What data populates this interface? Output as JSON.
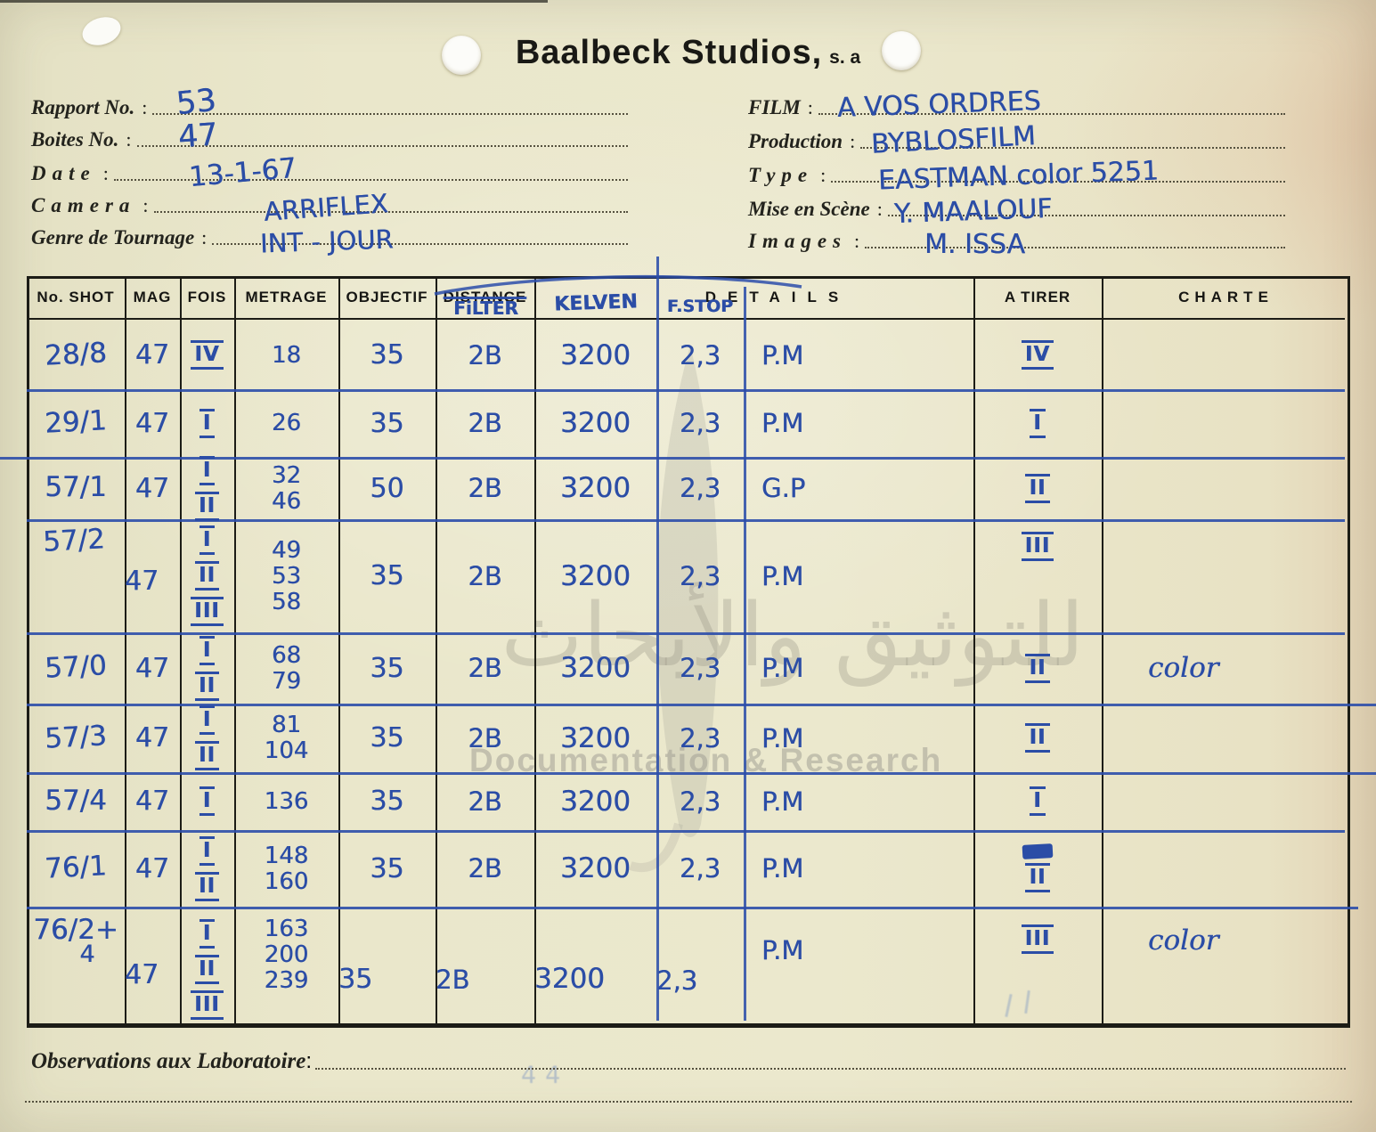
{
  "title": {
    "main": "Baalbeck Studios,",
    "suffix": "s. a"
  },
  "fields_left": [
    {
      "label": "Rapport No.",
      "colon": ":",
      "value": "53"
    },
    {
      "label": "Boites  No.",
      "colon": ":",
      "value": "47"
    },
    {
      "label": "Date",
      "colon": ":",
      "value": "13-1-67"
    },
    {
      "label": "Camera",
      "colon": ":",
      "value": "ARRIFLEX"
    },
    {
      "label": "Genre de Tournage",
      "colon": ":",
      "value": "INT - JOUR"
    }
  ],
  "fields_right": [
    {
      "label": "FILM",
      "colon": ":",
      "value": "A VOS ORDRES"
    },
    {
      "label": "Production",
      "colon": ":",
      "value": "BYBLOSFILM"
    },
    {
      "label": "Type",
      "colon": ":",
      "value": "EASTMAN color 5251"
    },
    {
      "label": "Mise en Scène",
      "colon": ":",
      "value": "Y. MAALOUF"
    },
    {
      "label": "Images",
      "colon": ":",
      "value": "M. ISSA"
    }
  ],
  "table": {
    "printed_columns": [
      "No. SHOT",
      "MAG",
      "FOIS",
      "METRAGE",
      "OBJECTIF",
      "DISTANCE",
      "DETAILS",
      "A TIRER",
      "CHARTE"
    ],
    "hand_headers": {
      "filter": "FiLTER",
      "kelven": "KELVEN",
      "fstop": "F.STOP"
    },
    "rows": [
      {
        "shot": "28/8",
        "shot2": "",
        "mag": "47",
        "fois": [
          "IV"
        ],
        "metrage": [
          "18"
        ],
        "objectif": "35",
        "filter": "2B",
        "kelven": "3200",
        "fstop": "2,3",
        "details": "P.M",
        "a_tirer": "IV",
        "charte": ""
      },
      {
        "shot": "29/1",
        "shot2": "",
        "mag": "47",
        "fois": [
          "I"
        ],
        "metrage": [
          "26"
        ],
        "objectif": "35",
        "filter": "2B",
        "kelven": "3200",
        "fstop": "2,3",
        "details": "P.M",
        "a_tirer": "I",
        "charte": ""
      },
      {
        "shot": "57/1",
        "shot2": "",
        "mag": "47",
        "fois": [
          "I",
          "II"
        ],
        "metrage": [
          "32",
          "46"
        ],
        "objectif": "50",
        "filter": "2B",
        "kelven": "3200",
        "fstop": "2,3",
        "details": "G.P",
        "a_tirer": "II",
        "charte": ""
      },
      {
        "shot": "57/2",
        "shot2": "",
        "mag": "47",
        "fois": [
          "I",
          "II",
          "III"
        ],
        "metrage": [
          "49",
          "53",
          "58"
        ],
        "objectif": "35",
        "filter": "2B",
        "kelven": "3200",
        "fstop": "2,3",
        "details": "P.M",
        "a_tirer": "III",
        "charte": ""
      },
      {
        "shot": "57/0",
        "shot2": "",
        "mag": "47",
        "fois": [
          "I",
          "II"
        ],
        "metrage": [
          "68",
          "79"
        ],
        "objectif": "35",
        "filter": "2B",
        "kelven": "3200",
        "fstop": "2,3",
        "details": "P.M",
        "a_tirer": "II",
        "charte": "color"
      },
      {
        "shot": "57/3",
        "shot2": "",
        "mag": "47",
        "fois": [
          "I",
          "II"
        ],
        "metrage": [
          "81",
          "104"
        ],
        "objectif": "35",
        "filter": "2B",
        "kelven": "3200",
        "fstop": "2,3",
        "details": "P.M",
        "a_tirer": "II",
        "charte": ""
      },
      {
        "shot": "57/4",
        "shot2": "",
        "mag": "47",
        "fois": [
          "I"
        ],
        "metrage": [
          "136"
        ],
        "objectif": "35",
        "filter": "2B",
        "kelven": "3200",
        "fstop": "2,3",
        "details": "P.M",
        "a_tirer": "I",
        "charte": ""
      },
      {
        "shot": "76/1",
        "shot2": "",
        "mag": "47",
        "fois": [
          "I",
          "II"
        ],
        "metrage": [
          "148",
          "160"
        ],
        "objectif": "35",
        "filter": "2B",
        "kelven": "3200",
        "fstop": "2,3",
        "details": "P.M",
        "a_tirer": "II",
        "charte": ""
      },
      {
        "shot": "76/2+",
        "shot2": "4",
        "mag": "47",
        "fois": [
          "I",
          "II",
          "III"
        ],
        "metrage": [
          "163",
          "200",
          "239"
        ],
        "objectif": "35",
        "filter": "2B",
        "kelven": "3200",
        "fstop": "2,3",
        "details": "P.M",
        "a_tirer": "III",
        "charte": "color"
      }
    ]
  },
  "footer": {
    "observations_label": "Observations aux Laboratoire",
    "colon": ":"
  },
  "watermark": {
    "arabic": "للتوثيق والأبحاث",
    "latin": "Documentation & Research"
  },
  "colors": {
    "ink": "#2b4da6",
    "paper": "#e9e6ca",
    "printed_text": "#1c1c16"
  }
}
